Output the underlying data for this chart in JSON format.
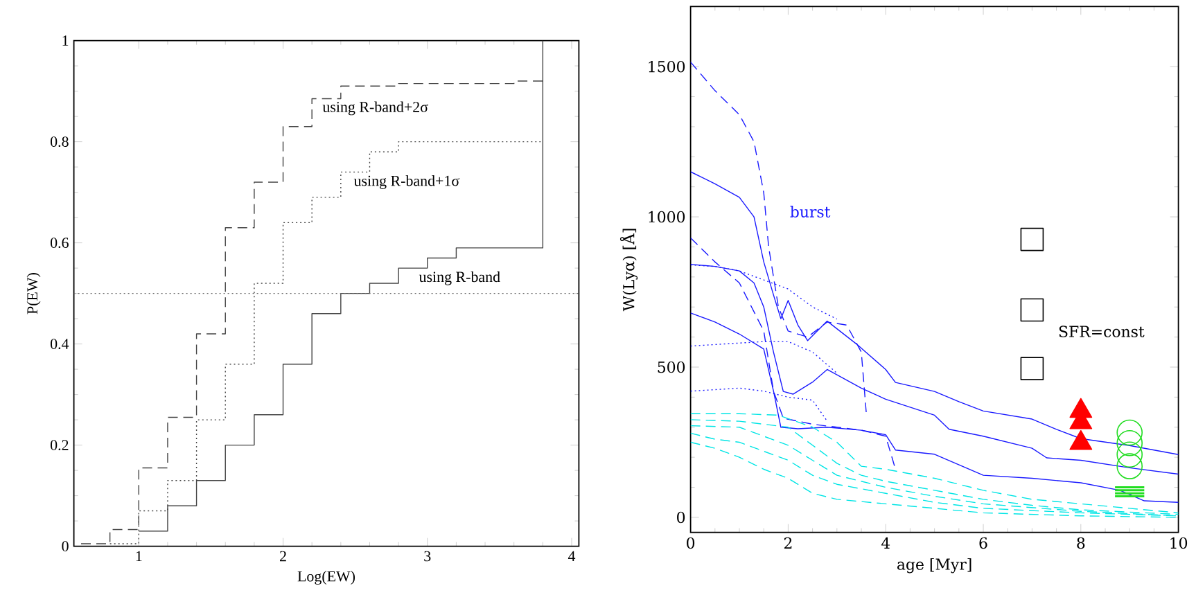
{
  "chart_data": [
    {
      "type": "step",
      "xlabel": "Log(EW)",
      "ylabel": "P(EW)",
      "xlim": [
        0.55,
        4.05
      ],
      "ylim": [
        0,
        1
      ],
      "xticks": [
        1,
        2,
        3,
        4
      ],
      "yticks": [
        0,
        0.2,
        0.4,
        0.6,
        0.8,
        1
      ],
      "series": [
        {
          "color": "#444444",
          "line_style": "solid",
          "x": [
            1.0,
            1.2,
            1.4,
            1.6,
            1.8,
            2.0,
            2.2,
            2.4,
            2.6,
            2.8,
            3.0,
            3.2,
            3.8
          ],
          "values": [
            0.03,
            0.08,
            0.13,
            0.2,
            0.26,
            0.36,
            0.46,
            0.5,
            0.52,
            0.55,
            0.57,
            0.59,
            1.0
          ]
        },
        {
          "color": "#444444",
          "line_style": "dashed",
          "x": [
            0.6,
            0.8,
            1.0,
            1.2,
            1.4,
            1.6,
            1.8,
            2.0,
            2.2,
            2.4,
            2.8,
            3.6,
            3.8
          ],
          "values": [
            0.005,
            0.033,
            0.155,
            0.255,
            0.42,
            0.63,
            0.72,
            0.83,
            0.885,
            0.91,
            0.915,
            0.92,
            0.92
          ]
        },
        {
          "color": "#444444",
          "line_style": "dotted",
          "x": [
            0.8,
            1.0,
            1.2,
            1.4,
            1.6,
            1.8,
            2.0,
            2.2,
            2.4,
            2.6,
            2.8,
            3.8
          ],
          "values": [
            0.005,
            0.07,
            0.13,
            0.25,
            0.36,
            0.52,
            0.64,
            0.69,
            0.74,
            0.78,
            0.8,
            0.8
          ]
        }
      ],
      "ref_lines": [
        {
          "axis": "y",
          "value": 0.5,
          "line_style": "dotted",
          "color": "#666666"
        }
      ],
      "annotations": [
        "using R-band+2σ",
        "using R-band+1σ",
        "using R-band"
      ]
    },
    {
      "type": "line",
      "xlabel": "age [Myr]",
      "ylabel": "W(Lyα) [Å]",
      "xlim": [
        0,
        10
      ],
      "ylim": [
        -50,
        1700
      ],
      "xticks": [
        0,
        2,
        4,
        6,
        8,
        10
      ],
      "yticks": [
        0,
        500,
        1000,
        1500
      ],
      "series": [
        {
          "color": "#1a1aff",
          "line_style": "solid",
          "x": [
            0,
            0.5,
            1.0,
            1.3,
            1.5,
            1.7,
            1.85,
            2.0,
            2.2,
            2.4,
            2.8,
            3.4,
            4.0,
            4.2,
            5.0,
            5.5,
            6.0,
            7.0,
            7.5,
            8.0,
            9.0,
            10.0
          ],
          "values": [
            1150,
            1110,
            1065,
            1000,
            850,
            740,
            661,
            722,
            640,
            588,
            653,
            577,
            492,
            449,
            419,
            385,
            354,
            327,
            293,
            262,
            239,
            209
          ]
        },
        {
          "color": "#1a1aff",
          "line_style": "solid",
          "x": [
            0,
            0.5,
            1.0,
            1.3,
            1.5,
            1.7,
            1.9,
            2.1,
            2.5,
            2.8,
            3.5,
            4.0,
            5.0,
            5.3,
            6.0,
            7.0,
            7.3,
            8.0,
            9.0,
            10.0
          ],
          "values": [
            842,
            835,
            820,
            780,
            700,
            550,
            419,
            410,
            450,
            492,
            430,
            393,
            340,
            293,
            270,
            230,
            198,
            190,
            165,
            144
          ]
        },
        {
          "color": "#1a1aff",
          "line_style": "solid",
          "x": [
            0,
            0.5,
            1.0,
            1.5,
            1.7,
            1.85,
            2.2,
            2.8,
            3.5,
            4.0,
            4.2,
            5.0,
            6.0,
            7.0,
            8.0,
            8.8,
            9.3,
            10.0
          ],
          "values": [
            680,
            650,
            610,
            560,
            420,
            300,
            295,
            300,
            290,
            275,
            224,
            210,
            140,
            130,
            115,
            90,
            55,
            50
          ]
        },
        {
          "color": "#1a1aff",
          "line_style": "dashed",
          "x": [
            0,
            0.5,
            1.0,
            1.3,
            1.5,
            1.6,
            1.8,
            2.0,
            2.4,
            2.8,
            3.2,
            3.5,
            3.6
          ],
          "values": [
            1515,
            1420,
            1340,
            1250,
            1080,
            900,
            700,
            620,
            600,
            650,
            640,
            550,
            350
          ]
        },
        {
          "color": "#1a1aff",
          "line_style": "dashed",
          "x": [
            0,
            0.5,
            1.0,
            1.5,
            1.7,
            1.9,
            2.5,
            3.0,
            3.5,
            4.0,
            4.2
          ],
          "values": [
            930,
            850,
            780,
            620,
            420,
            330,
            310,
            300,
            290,
            270,
            160
          ]
        },
        {
          "color": "#1a1aff",
          "line_style": "dotted",
          "x": [
            0,
            0.5,
            1.0,
            1.5,
            2.0,
            2.5,
            3.0
          ],
          "values": [
            840,
            835,
            820,
            790,
            760,
            700,
            660
          ]
        },
        {
          "color": "#1a1aff",
          "line_style": "dotted",
          "x": [
            0,
            0.5,
            1.0,
            1.5,
            2.0,
            2.5,
            3.0
          ],
          "values": [
            570,
            575,
            580,
            585,
            585,
            550,
            480
          ]
        },
        {
          "color": "#1a1aff",
          "line_style": "dotted",
          "x": [
            0,
            0.5,
            1.0,
            1.5,
            2.0,
            2.5,
            2.8
          ],
          "values": [
            420,
            425,
            430,
            420,
            400,
            390,
            320
          ]
        },
        {
          "color": "#00e5e5",
          "line_style": "dashed",
          "x": [
            0,
            1,
            1.8,
            2.5,
            3,
            3.5,
            4,
            5,
            6,
            7,
            8,
            9,
            10
          ],
          "values": [
            345,
            345,
            340,
            300,
            250,
            170,
            160,
            130,
            90,
            60,
            45,
            30,
            15
          ]
        },
        {
          "color": "#00e5e5",
          "line_style": "dashed",
          "x": [
            0,
            1,
            2,
            2.5,
            3,
            3.5,
            4,
            5,
            6,
            7,
            8,
            10
          ],
          "values": [
            325,
            320,
            300,
            240,
            180,
            140,
            120,
            90,
            60,
            40,
            25,
            10
          ]
        },
        {
          "color": "#00e5e5",
          "line_style": "dashed",
          "x": [
            0,
            1,
            1.5,
            2,
            2.5,
            3,
            4,
            5,
            6,
            8,
            10
          ],
          "values": [
            305,
            300,
            270,
            240,
            190,
            140,
            100,
            70,
            45,
            20,
            5
          ]
        },
        {
          "color": "#00e5e5",
          "line_style": "dashed",
          "x": [
            0,
            0.5,
            1,
            1.5,
            2,
            2.5,
            3,
            4,
            5,
            6,
            8,
            10
          ],
          "values": [
            280,
            260,
            250,
            220,
            190,
            140,
            110,
            80,
            50,
            30,
            15,
            5
          ]
        },
        {
          "color": "#00e5e5",
          "line_style": "dashed",
          "x": [
            0,
            0.5,
            1,
            1.5,
            2,
            2.5,
            3,
            4,
            5,
            6,
            8,
            10
          ],
          "values": [
            250,
            230,
            200,
            160,
            130,
            80,
            60,
            45,
            30,
            15,
            5,
            0
          ]
        },
        {
          "type": "scatter",
          "marker": "square",
          "color": "#000000",
          "x": [
            7,
            7,
            7
          ],
          "values": [
            925,
            690,
            495
          ]
        },
        {
          "type": "scatter",
          "marker": "triangle",
          "color": "#ff0000",
          "x": [
            8,
            8,
            8
          ],
          "values": [
            354,
            316,
            247
          ]
        },
        {
          "type": "scatter",
          "marker": "circle",
          "color": "#22dd22",
          "x": [
            9,
            9,
            9,
            9
          ],
          "values": [
            282,
            247,
            209,
            170
          ]
        },
        {
          "color": "#22dd22",
          "line_style": "solid",
          "x": [
            8.7,
            9.3
          ],
          "values": [
            100,
            100
          ]
        },
        {
          "color": "#22dd22",
          "line_style": "solid",
          "x": [
            8.7,
            9.3
          ],
          "values": [
            90,
            90
          ]
        },
        {
          "color": "#22dd22",
          "line_style": "solid",
          "x": [
            8.7,
            9.3
          ],
          "values": [
            80,
            80
          ]
        },
        {
          "color": "#22dd22",
          "line_style": "solid",
          "x": [
            8.7,
            9.3
          ],
          "values": [
            70,
            70
          ]
        }
      ],
      "annotations": [
        "burst",
        "SFR=const"
      ]
    }
  ]
}
